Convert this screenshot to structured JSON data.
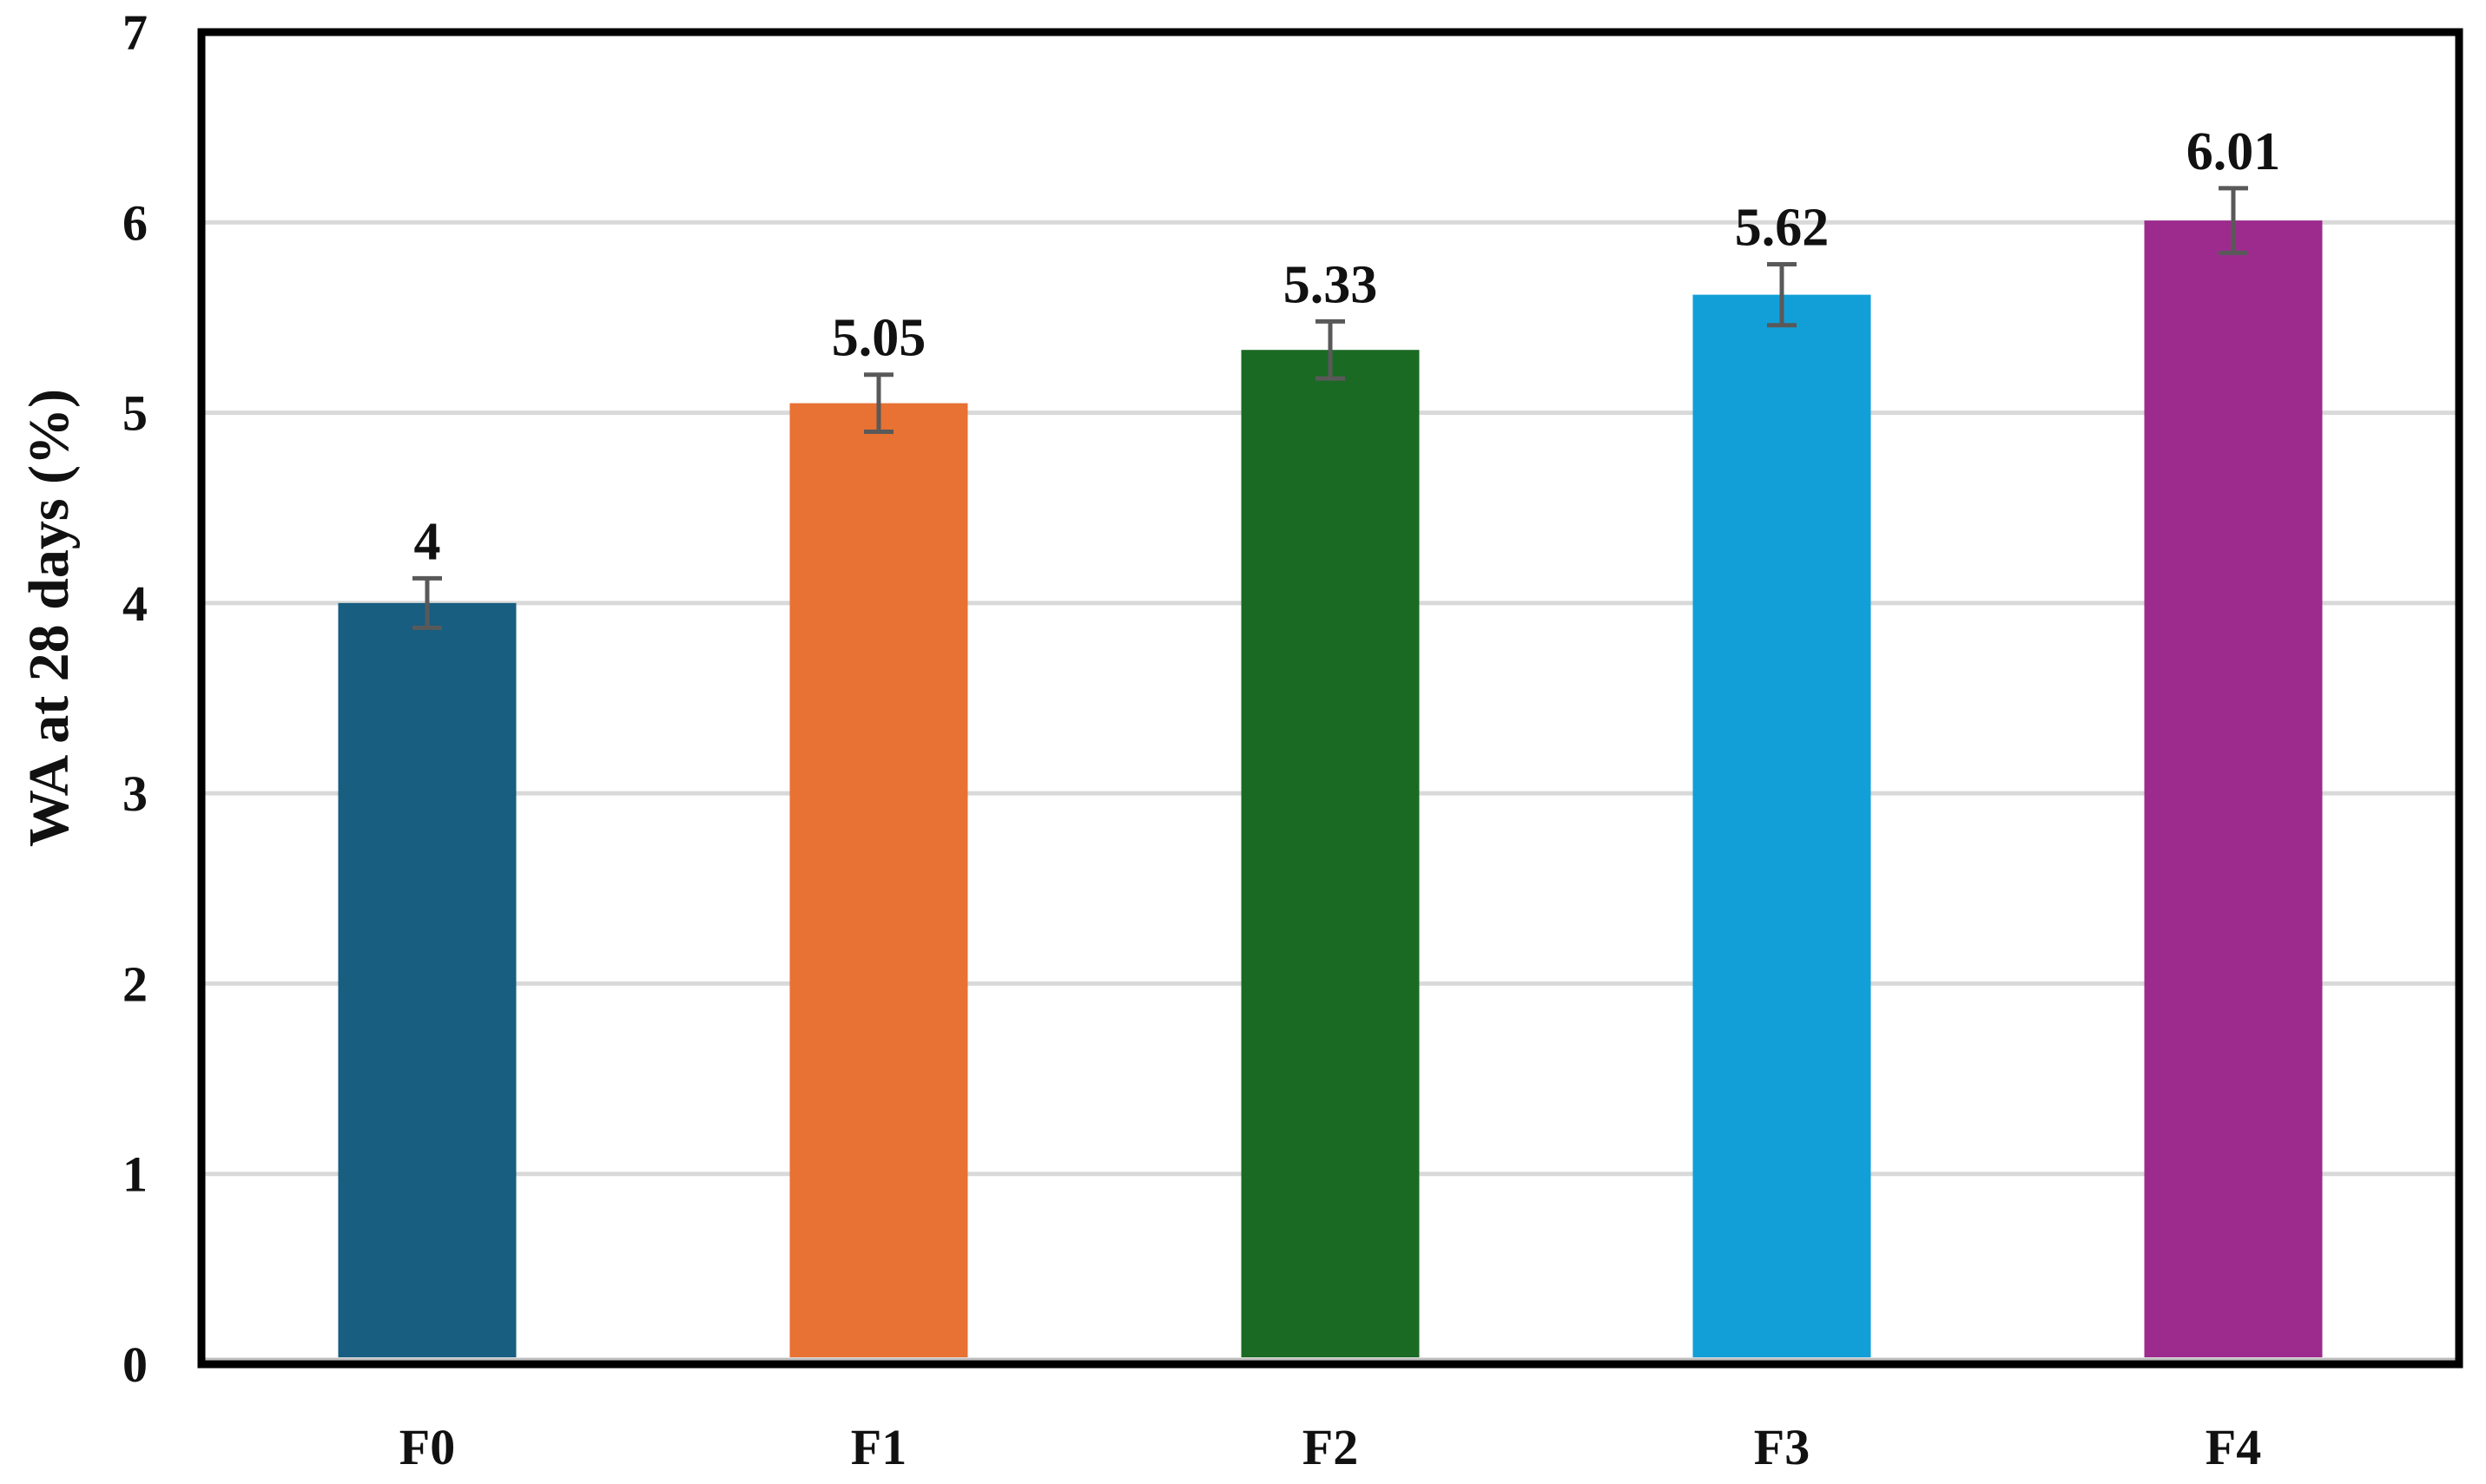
{
  "chart_data": {
    "type": "bar",
    "categories": [
      "F0",
      "F1",
      "F2",
      "F3",
      "F4"
    ],
    "values": [
      4,
      5.05,
      5.33,
      5.62,
      6.01
    ],
    "value_labels": [
      "4",
      "5.05",
      "5.33",
      "5.62",
      "6.01"
    ],
    "error": [
      0.13,
      0.15,
      0.15,
      0.16,
      0.17
    ],
    "colors": [
      "#175e80",
      "#e87134",
      "#1b6a24",
      "#129fd8",
      "#9d2b8e"
    ],
    "title": "",
    "xlabel": "",
    "ylabel": "WA at 28 days (%)",
    "ylim": [
      0,
      7
    ],
    "yticks": [
      "0",
      "1",
      "2",
      "3",
      "4",
      "5",
      "6",
      "7"
    ],
    "grid": true,
    "legend": "none"
  }
}
